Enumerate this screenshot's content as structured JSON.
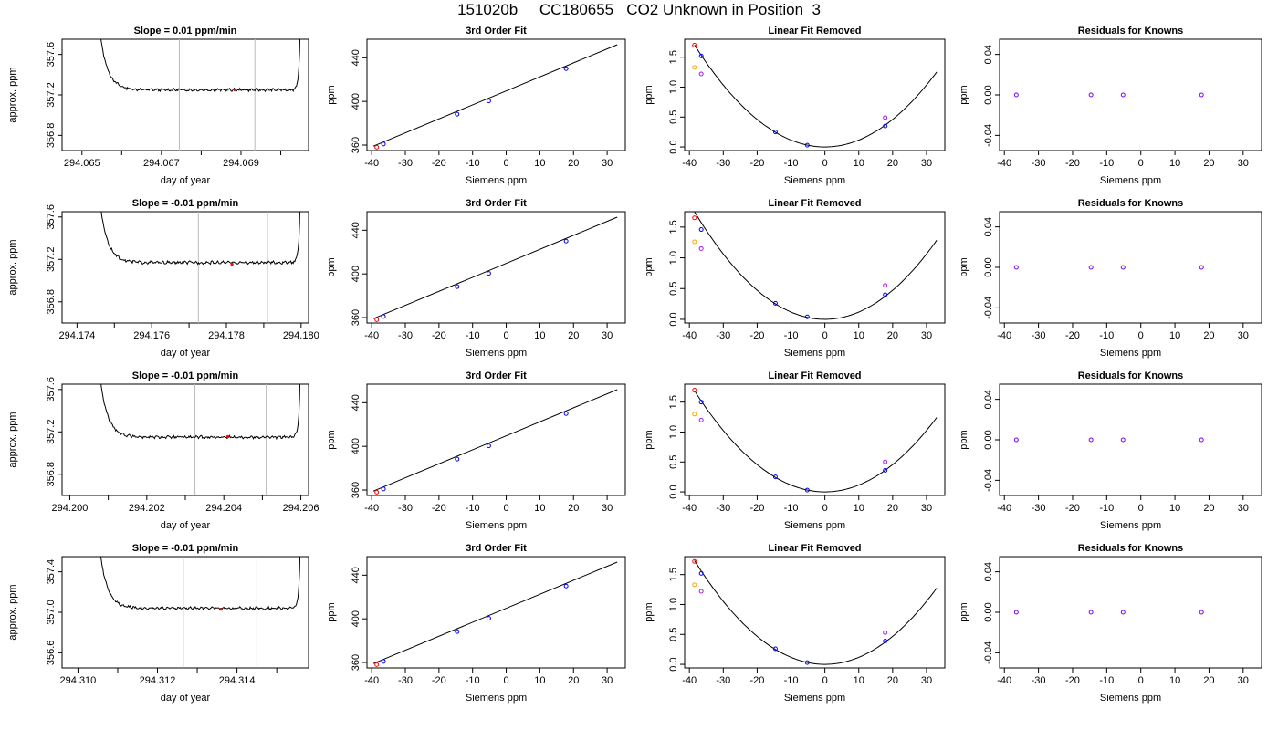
{
  "title": "151020b     CC180655   CO2 Unknown in Position  3",
  "chart_data": [
    {
      "type": "line",
      "title": "Slope =  0.01  ppm/min",
      "xlabel": "day of year",
      "ylabel": "approx. ppm",
      "xlim": [
        294.0645,
        294.0707
      ],
      "ylim": [
        356.65,
        357.75
      ],
      "xticks": [
        "294.065",
        "294.067",
        "294.069"
      ],
      "xtick_vals": [
        294.065,
        294.067,
        294.069
      ],
      "xminor": [
        294.066,
        294.068,
        294.07
      ],
      "yticks": [
        "356.8",
        "357.2",
        "357.6"
      ],
      "ytick_vals": [
        356.8,
        357.2,
        357.6
      ],
      "vlines": [
        294.06745,
        294.06935
      ],
      "mean": 357.25,
      "marker": [
        294.06885,
        357.25
      ]
    },
    {
      "type": "line",
      "title": "3rd Order Fit",
      "xlabel": "Siemens ppm",
      "ylabel": "ppm",
      "xlim": [
        -41.4,
        35.4
      ],
      "ylim": [
        355,
        457
      ],
      "xticks": [
        "-40",
        "-30",
        "-20",
        "-10",
        "0",
        "10",
        "20",
        "30"
      ],
      "xtick_vals": [
        -40,
        -30,
        -20,
        -10,
        0,
        10,
        20,
        30
      ],
      "yticks": [
        "360",
        "400",
        "440"
      ],
      "ytick_vals": [
        360,
        400,
        440
      ],
      "line": [
        [
          -39.5,
          359
        ],
        [
          33,
          452
        ]
      ],
      "points": [
        {
          "x": -38.5,
          "y": 358,
          "color": "#ff0000"
        },
        {
          "x": -36.5,
          "y": 361,
          "color": "#0000ff"
        },
        {
          "x": -14.6,
          "y": 388.3,
          "color": "#0000ff"
        },
        {
          "x": -5.2,
          "y": 400.5,
          "color": "#0000ff"
        },
        {
          "x": 17.8,
          "y": 430,
          "color": "#0000ff"
        }
      ]
    },
    {
      "type": "scatter",
      "title": "Linear Fit Removed",
      "xlabel": "Siemens ppm",
      "ylabel": "ppm",
      "xlim": [
        -41.4,
        35.4
      ],
      "ylim": [
        -0.06,
        1.8
      ],
      "xticks": [
        "-40",
        "-30",
        "-20",
        "-10",
        "0",
        "10",
        "20",
        "30"
      ],
      "xtick_vals": [
        -40,
        -30,
        -20,
        -10,
        0,
        10,
        20,
        30
      ],
      "yticks": [
        "0.0",
        "0.5",
        "1.0",
        "1.5"
      ],
      "ytick_vals": [
        0,
        0.5,
        1.0,
        1.5
      ],
      "curve": {
        "a": 0.00115,
        "x0": 0,
        "from": -38.5,
        "to": 33
      },
      "points": [
        {
          "x": -38.5,
          "y": 1.7,
          "color": "#ff0000"
        },
        {
          "x": -36.5,
          "y": 1.52,
          "color": "#0000ff"
        },
        {
          "x": -38.5,
          "y": 1.33,
          "color": "#ffa500"
        },
        {
          "x": -36.5,
          "y": 1.22,
          "color": "#a020f0"
        },
        {
          "x": -14.6,
          "y": 0.25,
          "color": "#0000ff"
        },
        {
          "x": -5.2,
          "y": 0.03,
          "color": "#0000ff"
        },
        {
          "x": 17.8,
          "y": 0.35,
          "color": "#0000ff"
        },
        {
          "x": 17.8,
          "y": 0.49,
          "color": "#a020f0"
        }
      ]
    },
    {
      "type": "scatter",
      "title": "Residuals for Knowns",
      "xlabel": "Siemens ppm",
      "ylabel": "ppm",
      "xlim": [
        -41.4,
        35.4
      ],
      "ylim": [
        -0.055,
        0.055
      ],
      "xticks": [
        "-40",
        "-30",
        "-20",
        "-10",
        "0",
        "10",
        "20",
        "30"
      ],
      "xtick_vals": [
        -40,
        -30,
        -20,
        -10,
        0,
        10,
        20,
        30
      ],
      "yticks": [
        "-0.04",
        "0.00",
        "0.04"
      ],
      "ytick_vals": [
        -0.04,
        0,
        0.04
      ],
      "points": [
        {
          "x": -36.5,
          "y": 0,
          "color": "#7a00ff"
        },
        {
          "x": -14.6,
          "y": 0,
          "color": "#7a00ff"
        },
        {
          "x": -5.2,
          "y": 0,
          "color": "#7a00ff"
        },
        {
          "x": 17.8,
          "y": 0,
          "color": "#7a00ff"
        }
      ]
    },
    {
      "type": "line",
      "title": "Slope =  -0.01  ppm/min",
      "xlabel": "day of year",
      "ylabel": "approx. ppm",
      "xlim": [
        294.1736,
        294.1802
      ],
      "ylim": [
        356.6,
        357.65
      ],
      "xticks": [
        "294.174",
        "294.176",
        "294.178",
        "294.180"
      ],
      "xtick_vals": [
        294.174,
        294.176,
        294.178,
        294.18
      ],
      "xminor": [
        294.175,
        294.177,
        294.179
      ],
      "yticks": [
        "356.8",
        "357.2",
        "357.6"
      ],
      "ytick_vals": [
        356.8,
        357.2,
        357.6
      ],
      "vlines": [
        294.17725,
        294.1791
      ],
      "mean": 357.17,
      "marker": [
        294.17815,
        357.155
      ]
    },
    {
      "type": "line",
      "title": "3rd Order Fit",
      "xlabel": "Siemens ppm",
      "ylabel": "ppm",
      "xlim": [
        -41.4,
        35.4
      ],
      "ylim": [
        355,
        457
      ],
      "xticks": [
        "-40",
        "-30",
        "-20",
        "-10",
        "0",
        "10",
        "20",
        "30"
      ],
      "xtick_vals": [
        -40,
        -30,
        -20,
        -10,
        0,
        10,
        20,
        30
      ],
      "yticks": [
        "360",
        "400",
        "440"
      ],
      "ytick_vals": [
        360,
        400,
        440
      ],
      "line": [
        [
          -39.5,
          359
        ],
        [
          33,
          452
        ]
      ],
      "points": [
        {
          "x": -38.5,
          "y": 358,
          "color": "#ff0000"
        },
        {
          "x": -36.5,
          "y": 361,
          "color": "#0000ff"
        },
        {
          "x": -14.6,
          "y": 388.3,
          "color": "#0000ff"
        },
        {
          "x": -5.2,
          "y": 400.5,
          "color": "#0000ff"
        },
        {
          "x": 17.8,
          "y": 430,
          "color": "#0000ff"
        }
      ]
    },
    {
      "type": "scatter",
      "title": "Linear Fit Removed",
      "xlabel": "Siemens ppm",
      "ylabel": "ppm",
      "xlim": [
        -41.4,
        35.4
      ],
      "ylim": [
        -0.06,
        1.75
      ],
      "xticks": [
        "-40",
        "-30",
        "-20",
        "-10",
        "0",
        "10",
        "20",
        "30"
      ],
      "xtick_vals": [
        -40,
        -30,
        -20,
        -10,
        0,
        10,
        20,
        30
      ],
      "yticks": [
        "0.0",
        "0.5",
        "1.0",
        "1.5"
      ],
      "ytick_vals": [
        0,
        0.5,
        1.0,
        1.5
      ],
      "curve": {
        "a": 0.00118,
        "x0": 0,
        "from": -38.5,
        "to": 33
      },
      "points": [
        {
          "x": -38.5,
          "y": 1.65,
          "color": "#ff0000"
        },
        {
          "x": -36.5,
          "y": 1.46,
          "color": "#0000ff"
        },
        {
          "x": -38.5,
          "y": 1.26,
          "color": "#ffa500"
        },
        {
          "x": -36.5,
          "y": 1.15,
          "color": "#a020f0"
        },
        {
          "x": -14.6,
          "y": 0.26,
          "color": "#0000ff"
        },
        {
          "x": -5.2,
          "y": 0.04,
          "color": "#0000ff"
        },
        {
          "x": 17.8,
          "y": 0.4,
          "color": "#0000ff"
        },
        {
          "x": 17.8,
          "y": 0.55,
          "color": "#a020f0"
        }
      ]
    },
    {
      "type": "scatter",
      "title": "Residuals for Knowns",
      "xlabel": "Siemens ppm",
      "ylabel": "ppm",
      "xlim": [
        -41.4,
        35.4
      ],
      "ylim": [
        -0.055,
        0.055
      ],
      "xticks": [
        "-40",
        "-30",
        "-20",
        "-10",
        "0",
        "10",
        "20",
        "30"
      ],
      "xtick_vals": [
        -40,
        -30,
        -20,
        -10,
        0,
        10,
        20,
        30
      ],
      "yticks": [
        "-0.04",
        "0.00",
        "0.04"
      ],
      "ytick_vals": [
        -0.04,
        0,
        0.04
      ],
      "points": [
        {
          "x": -36.5,
          "y": 0,
          "color": "#7a00ff"
        },
        {
          "x": -14.6,
          "y": 0,
          "color": "#7a00ff"
        },
        {
          "x": -5.2,
          "y": 0,
          "color": "#7a00ff"
        },
        {
          "x": 17.8,
          "y": 0,
          "color": "#7a00ff"
        }
      ]
    },
    {
      "type": "line",
      "title": "Slope =  -0.01  ppm/min",
      "xlabel": "day of year",
      "ylabel": "approx. ppm",
      "xlim": [
        294.1998,
        294.2062
      ],
      "ylim": [
        356.6,
        357.65
      ],
      "xticks": [
        "294.200",
        "294.202",
        "294.204",
        "294.206"
      ],
      "xtick_vals": [
        294.2,
        294.202,
        294.204,
        294.206
      ],
      "xminor": [
        294.201,
        294.203,
        294.205
      ],
      "yticks": [
        "356.8",
        "357.2",
        "357.6"
      ],
      "ytick_vals": [
        356.8,
        357.2,
        357.6
      ],
      "vlines": [
        294.20325,
        294.2051
      ],
      "mean": 357.15,
      "marker": [
        294.2041,
        357.155
      ]
    },
    {
      "type": "line",
      "title": "3rd Order Fit",
      "xlabel": "Siemens ppm",
      "ylabel": "ppm",
      "xlim": [
        -41.4,
        35.4
      ],
      "ylim": [
        355,
        457
      ],
      "xticks": [
        "-40",
        "-30",
        "-20",
        "-10",
        "0",
        "10",
        "20",
        "30"
      ],
      "xtick_vals": [
        -40,
        -30,
        -20,
        -10,
        0,
        10,
        20,
        30
      ],
      "yticks": [
        "360",
        "400",
        "440"
      ],
      "ytick_vals": [
        360,
        400,
        440
      ],
      "line": [
        [
          -39.5,
          359
        ],
        [
          33,
          452
        ]
      ],
      "points": [
        {
          "x": -38.5,
          "y": 358,
          "color": "#ff0000"
        },
        {
          "x": -36.5,
          "y": 361,
          "color": "#0000ff"
        },
        {
          "x": -14.6,
          "y": 388.3,
          "color": "#0000ff"
        },
        {
          "x": -5.2,
          "y": 400.5,
          "color": "#0000ff"
        },
        {
          "x": 17.8,
          "y": 430,
          "color": "#0000ff"
        }
      ]
    },
    {
      "type": "scatter",
      "title": "Linear Fit Removed",
      "xlabel": "Siemens ppm",
      "ylabel": "ppm",
      "xlim": [
        -41.4,
        35.4
      ],
      "ylim": [
        -0.06,
        1.8
      ],
      "xticks": [
        "-40",
        "-30",
        "-20",
        "-10",
        "0",
        "10",
        "20",
        "30"
      ],
      "xtick_vals": [
        -40,
        -30,
        -20,
        -10,
        0,
        10,
        20,
        30
      ],
      "yticks": [
        "0.0",
        "0.5",
        "1.0",
        "1.5"
      ],
      "ytick_vals": [
        0,
        0.5,
        1.0,
        1.5
      ],
      "curve": {
        "a": 0.00114,
        "x0": 0,
        "from": -38.5,
        "to": 33
      },
      "points": [
        {
          "x": -38.5,
          "y": 1.7,
          "color": "#ff0000"
        },
        {
          "x": -36.5,
          "y": 1.5,
          "color": "#0000ff"
        },
        {
          "x": -38.5,
          "y": 1.3,
          "color": "#ffa500"
        },
        {
          "x": -36.5,
          "y": 1.2,
          "color": "#a020f0"
        },
        {
          "x": -14.6,
          "y": 0.25,
          "color": "#0000ff"
        },
        {
          "x": -5.2,
          "y": 0.03,
          "color": "#0000ff"
        },
        {
          "x": 17.8,
          "y": 0.36,
          "color": "#0000ff"
        },
        {
          "x": 17.8,
          "y": 0.5,
          "color": "#a020f0"
        }
      ]
    },
    {
      "type": "scatter",
      "title": "Residuals for Knowns",
      "xlabel": "Siemens ppm",
      "ylabel": "ppm",
      "xlim": [
        -41.4,
        35.4
      ],
      "ylim": [
        -0.055,
        0.055
      ],
      "xticks": [
        "-40",
        "-30",
        "-20",
        "-10",
        "0",
        "10",
        "20",
        "30"
      ],
      "xtick_vals": [
        -40,
        -30,
        -20,
        -10,
        0,
        10,
        20,
        30
      ],
      "yticks": [
        "-0.04",
        "0.00",
        "0.04"
      ],
      "ytick_vals": [
        -0.04,
        0,
        0.04
      ],
      "points": [
        {
          "x": -36.5,
          "y": 0,
          "color": "#7a00ff"
        },
        {
          "x": -14.6,
          "y": 0,
          "color": "#7a00ff"
        },
        {
          "x": -5.2,
          "y": 0,
          "color": "#7a00ff"
        },
        {
          "x": 17.8,
          "y": 0,
          "color": "#7a00ff"
        }
      ]
    },
    {
      "type": "line",
      "title": "Slope =  -0.01  ppm/min",
      "xlabel": "day of year",
      "ylabel": "approx. ppm",
      "xlim": [
        294.3096,
        294.3158
      ],
      "ylim": [
        356.45,
        357.55
      ],
      "xticks": [
        "294.310",
        "294.312",
        "294.314"
      ],
      "xtick_vals": [
        294.31,
        294.312,
        294.314
      ],
      "xminor": [
        294.311,
        294.313,
        294.315
      ],
      "yticks": [
        "356.6",
        "357.0",
        "357.4"
      ],
      "ytick_vals": [
        356.6,
        357.0,
        357.4
      ],
      "vlines": [
        294.31265,
        294.3145
      ],
      "mean": 357.04,
      "marker": [
        294.3136,
        357.03
      ]
    },
    {
      "type": "line",
      "title": "3rd Order Fit",
      "xlabel": "Siemens ppm",
      "ylabel": "ppm",
      "xlim": [
        -41.4,
        35.4
      ],
      "ylim": [
        355,
        457
      ],
      "xticks": [
        "-40",
        "-30",
        "-20",
        "-10",
        "0",
        "10",
        "20",
        "30"
      ],
      "xtick_vals": [
        -40,
        -30,
        -20,
        -10,
        0,
        10,
        20,
        30
      ],
      "yticks": [
        "360",
        "400",
        "440"
      ],
      "ytick_vals": [
        360,
        400,
        440
      ],
      "line": [
        [
          -39.5,
          359
        ],
        [
          33,
          452
        ]
      ],
      "points": [
        {
          "x": -38.5,
          "y": 358,
          "color": "#ff0000"
        },
        {
          "x": -36.5,
          "y": 361,
          "color": "#0000ff"
        },
        {
          "x": -14.6,
          "y": 388.3,
          "color": "#0000ff"
        },
        {
          "x": -5.2,
          "y": 400.5,
          "color": "#0000ff"
        },
        {
          "x": 17.8,
          "y": 430,
          "color": "#0000ff"
        }
      ]
    },
    {
      "type": "scatter",
      "title": "Linear Fit Removed",
      "xlabel": "Siemens ppm",
      "ylabel": "ppm",
      "xlim": [
        -41.4,
        35.4
      ],
      "ylim": [
        -0.06,
        1.8
      ],
      "xticks": [
        "-40",
        "-30",
        "-20",
        "-10",
        "0",
        "10",
        "20",
        "30"
      ],
      "xtick_vals": [
        -40,
        -30,
        -20,
        -10,
        0,
        10,
        20,
        30
      ],
      "yticks": [
        "0.0",
        "0.5",
        "1.0",
        "1.5"
      ],
      "ytick_vals": [
        0,
        0.5,
        1.0,
        1.5
      ],
      "curve": {
        "a": 0.00117,
        "x0": 0,
        "from": -38.5,
        "to": 33
      },
      "points": [
        {
          "x": -38.5,
          "y": 1.72,
          "color": "#ff0000"
        },
        {
          "x": -36.5,
          "y": 1.52,
          "color": "#0000ff"
        },
        {
          "x": -38.5,
          "y": 1.33,
          "color": "#ffa500"
        },
        {
          "x": -36.5,
          "y": 1.22,
          "color": "#a020f0"
        },
        {
          "x": -14.6,
          "y": 0.26,
          "color": "#0000ff"
        },
        {
          "x": -5.2,
          "y": 0.03,
          "color": "#0000ff"
        },
        {
          "x": 17.8,
          "y": 0.39,
          "color": "#0000ff"
        },
        {
          "x": 17.8,
          "y": 0.53,
          "color": "#a020f0"
        }
      ]
    },
    {
      "type": "scatter",
      "title": "Residuals for Knowns",
      "xlabel": "Siemens ppm",
      "ylabel": "ppm",
      "xlim": [
        -41.4,
        35.4
      ],
      "ylim": [
        -0.055,
        0.055
      ],
      "xticks": [
        "-40",
        "-30",
        "-20",
        "-10",
        "0",
        "10",
        "20",
        "30"
      ],
      "xtick_vals": [
        -40,
        -30,
        -20,
        -10,
        0,
        10,
        20,
        30
      ],
      "yticks": [
        "-0.04",
        "0.00",
        "0.04"
      ],
      "ytick_vals": [
        -0.04,
        0,
        0.04
      ],
      "points": [
        {
          "x": -36.5,
          "y": 0,
          "color": "#7a00ff"
        },
        {
          "x": -14.6,
          "y": 0,
          "color": "#7a00ff"
        },
        {
          "x": -5.2,
          "y": 0,
          "color": "#7a00ff"
        },
        {
          "x": 17.8,
          "y": 0,
          "color": "#7a00ff"
        }
      ]
    }
  ]
}
